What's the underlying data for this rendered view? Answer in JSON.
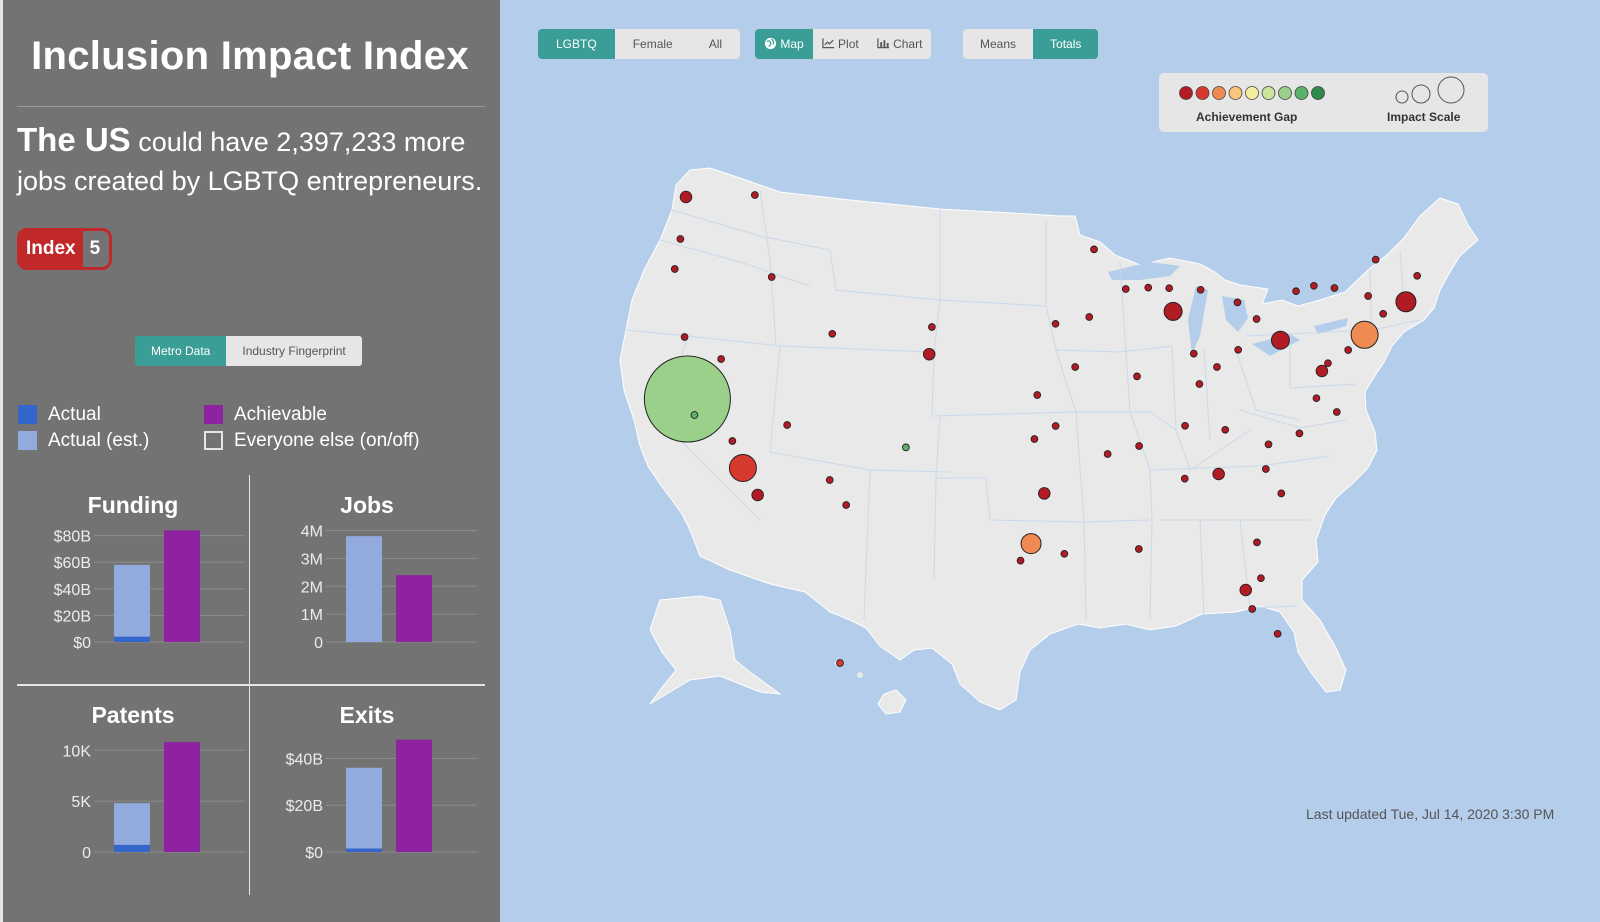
{
  "app_title": "Inclusion Impact Index",
  "headline": {
    "country": "The US",
    "text_1": "could have 2,397,233 more",
    "text_2": "jobs created by LGBTQ entrepreneurs."
  },
  "index_badge": {
    "label": "Index",
    "value": "5"
  },
  "data_toggle": {
    "options": [
      "Metro Data",
      "Industry Fingerprint"
    ],
    "selected": "Metro Data"
  },
  "legend": {
    "actual": "Actual",
    "actual_est": "Actual (est.)",
    "achievable": "Achievable",
    "everyone_else": "Everyone else (on/off)"
  },
  "colors": {
    "accent": "#3a9e96",
    "actual": "#3566cc",
    "actual_est": "#92aadd",
    "achievable": "#8e22a0",
    "index_red": "#c0282a",
    "land": "#e9e9e9",
    "water": "#b3cdea",
    "gap_scale": [
      "#b31b24",
      "#d63a2f",
      "#ef8a52",
      "#f8c57c",
      "#f2ee9e",
      "#cbe39a",
      "#9bd08a",
      "#5ab26a",
      "#2d8a4a"
    ]
  },
  "charts": [
    {
      "title": "Funding",
      "ticks": [
        "$80B",
        "$60B",
        "$40B",
        "$20B",
        "$0"
      ],
      "tick_values": [
        80,
        60,
        40,
        20,
        0
      ],
      "max": 88,
      "actual": 4,
      "actual_est": 58,
      "achievable": 84
    },
    {
      "title": "Jobs",
      "ticks": [
        "4M",
        "3M",
        "2M",
        "1M",
        "0"
      ],
      "tick_values": [
        4,
        3,
        2,
        1,
        0
      ],
      "max": 4.2,
      "actual": 0,
      "actual_est": 3.8,
      "achievable": 2.4
    },
    {
      "title": "Patents",
      "ticks": [
        "10K",
        "5K",
        "0"
      ],
      "tick_values": [
        10,
        5,
        0
      ],
      "max": 11.5,
      "actual": 0.7,
      "actual_est": 4.8,
      "achievable": 10.8
    },
    {
      "title": "Exits",
      "ticks": [
        "$40B",
        "$20B",
        "$0"
      ],
      "tick_values": [
        40,
        20,
        0
      ],
      "max": 50,
      "actual": 1.5,
      "actual_est": 36,
      "achievable": 48
    }
  ],
  "group_toggle": {
    "options": [
      "LGBTQ",
      "Female",
      "All"
    ],
    "selected": "LGBTQ"
  },
  "view_toggle": {
    "map": "Map",
    "plot": "Plot",
    "chart": "Chart",
    "selected": "Map"
  },
  "measure_toggle": {
    "options": [
      "Means",
      "Totals"
    ],
    "selected": "Totals"
  },
  "map_legend": {
    "gap_label": "Achievement Gap",
    "scale_label": "Impact Scale"
  },
  "last_updated": "Last updated Tue, Jul 14, 2020 3:30 PM",
  "metros": [
    {
      "lat": 47.6,
      "lon": -122.3,
      "gap": 1,
      "size": "s2"
    },
    {
      "lat": 47.7,
      "lon": -117.4,
      "gap": 1,
      "size": "s1"
    },
    {
      "lat": 45.5,
      "lon": -122.7,
      "gap": 1,
      "size": "s1"
    },
    {
      "lat": 44.0,
      "lon": -123.1,
      "gap": 1,
      "size": "s1"
    },
    {
      "lat": 43.6,
      "lon": -116.2,
      "gap": 1,
      "size": "s1"
    },
    {
      "lat": 40.6,
      "lon": -122.4,
      "gap": 1,
      "size": "s1"
    },
    {
      "lat": 38.6,
      "lon": -121.5,
      "gap": 1,
      "size": "s1"
    },
    {
      "lat": 37.5,
      "lon": -122.2,
      "gap": 7,
      "size": "xl"
    },
    {
      "lat": 36.7,
      "lon": -121.7,
      "gap": 8,
      "size": "s1"
    },
    {
      "lat": 35.4,
      "lon": -119.0,
      "gap": 1,
      "size": "s1"
    },
    {
      "lat": 34.05,
      "lon": -118.25,
      "gap": 2,
      "size": "l"
    },
    {
      "lat": 32.7,
      "lon": -117.2,
      "gap": 1,
      "size": "s2"
    },
    {
      "lat": 39.5,
      "lon": -119.8,
      "gap": 1,
      "size": "s1"
    },
    {
      "lat": 36.2,
      "lon": -115.1,
      "gap": 1,
      "size": "s1"
    },
    {
      "lat": 33.45,
      "lon": -112.07,
      "gap": 1,
      "size": "s1"
    },
    {
      "lat": 32.2,
      "lon": -110.9,
      "gap": 1,
      "size": "s1"
    },
    {
      "lat": 40.76,
      "lon": -111.89,
      "gap": 1,
      "size": "s1"
    },
    {
      "lat": 41.1,
      "lon": -104.8,
      "gap": 1,
      "size": "s1"
    },
    {
      "lat": 39.74,
      "lon": -104.99,
      "gap": 1,
      "size": "s2"
    },
    {
      "lat": 35.08,
      "lon": -106.65,
      "gap": 8,
      "size": "s1"
    },
    {
      "lat": 44.98,
      "lon": -93.26,
      "gap": 1,
      "size": "s1"
    },
    {
      "lat": 43.0,
      "lon": -91.0,
      "gap": 1,
      "size": "s1"
    },
    {
      "lat": 41.6,
      "lon": -93.6,
      "gap": 1,
      "size": "s1"
    },
    {
      "lat": 41.26,
      "lon": -96.0,
      "gap": 1,
      "size": "s1"
    },
    {
      "lat": 39.1,
      "lon": -94.6,
      "gap": 1,
      "size": "s1"
    },
    {
      "lat": 37.7,
      "lon": -97.3,
      "gap": 1,
      "size": "s1"
    },
    {
      "lat": 35.5,
      "lon": -97.5,
      "gap": 1,
      "size": "s1"
    },
    {
      "lat": 36.15,
      "lon": -95.99,
      "gap": 1,
      "size": "s1"
    },
    {
      "lat": 32.78,
      "lon": -96.8,
      "gap": 1,
      "size": "s2"
    },
    {
      "lat": 30.27,
      "lon": -97.74,
      "gap": 3,
      "size": "m"
    },
    {
      "lat": 29.42,
      "lon": -98.49,
      "gap": 1,
      "size": "s1"
    },
    {
      "lat": 29.76,
      "lon": -95.37,
      "gap": 1,
      "size": "s1"
    },
    {
      "lat": 38.63,
      "lon": -90.2,
      "gap": 1,
      "size": "s1"
    },
    {
      "lat": 41.88,
      "lon": -87.63,
      "gap": 1,
      "size": "m2"
    },
    {
      "lat": 43.04,
      "lon": -87.91,
      "gap": 1,
      "size": "s1"
    },
    {
      "lat": 43.07,
      "lon": -89.4,
      "gap": 1,
      "size": "s1"
    },
    {
      "lat": 42.96,
      "lon": -85.67,
      "gap": 1,
      "size": "s1"
    },
    {
      "lat": 42.33,
      "lon": -83.05,
      "gap": 1,
      "size": "s1"
    },
    {
      "lat": 39.77,
      "lon": -86.16,
      "gap": 1,
      "size": "s1"
    },
    {
      "lat": 39.96,
      "lon": -83.0,
      "gap": 1,
      "size": "s1"
    },
    {
      "lat": 41.5,
      "lon": -81.69,
      "gap": 1,
      "size": "s1"
    },
    {
      "lat": 40.44,
      "lon": -79.99,
      "gap": 1,
      "size": "m2"
    },
    {
      "lat": 39.1,
      "lon": -84.51,
      "gap": 1,
      "size": "s1"
    },
    {
      "lat": 38.25,
      "lon": -85.76,
      "gap": 1,
      "size": "s1"
    },
    {
      "lat": 36.16,
      "lon": -86.78,
      "gap": 1,
      "size": "s1"
    },
    {
      "lat": 35.15,
      "lon": -90.05,
      "gap": 1,
      "size": "s1"
    },
    {
      "lat": 34.75,
      "lon": -92.29,
      "gap": 1,
      "size": "s1"
    },
    {
      "lat": 33.52,
      "lon": -86.8,
      "gap": 1,
      "size": "s1"
    },
    {
      "lat": 33.75,
      "lon": -84.39,
      "gap": 1,
      "size": "s2"
    },
    {
      "lat": 30.0,
      "lon": -90.07,
      "gap": 1,
      "size": "s1"
    },
    {
      "lat": 35.96,
      "lon": -83.92,
      "gap": 1,
      "size": "s1"
    },
    {
      "lat": 35.23,
      "lon": -80.84,
      "gap": 1,
      "size": "s1"
    },
    {
      "lat": 35.78,
      "lon": -78.64,
      "gap": 1,
      "size": "s1"
    },
    {
      "lat": 34.0,
      "lon": -81.03,
      "gap": 1,
      "size": "s1"
    },
    {
      "lat": 32.78,
      "lon": -79.93,
      "gap": 1,
      "size": "s1"
    },
    {
      "lat": 37.54,
      "lon": -77.43,
      "gap": 1,
      "size": "s1"
    },
    {
      "lat": 36.85,
      "lon": -75.98,
      "gap": 1,
      "size": "s1"
    },
    {
      "lat": 38.9,
      "lon": -77.04,
      "gap": 1,
      "size": "s2"
    },
    {
      "lat": 39.29,
      "lon": -76.61,
      "gap": 1,
      "size": "s1"
    },
    {
      "lat": 39.95,
      "lon": -75.17,
      "gap": 1,
      "size": "s1"
    },
    {
      "lat": 40.71,
      "lon": -74.0,
      "gap": 3,
      "size": "l"
    },
    {
      "lat": 41.76,
      "lon": -72.68,
      "gap": 1,
      "size": "s1"
    },
    {
      "lat": 42.36,
      "lon": -71.06,
      "gap": 1,
      "size": "m"
    },
    {
      "lat": 42.65,
      "lon": -73.75,
      "gap": 1,
      "size": "s1"
    },
    {
      "lat": 43.16,
      "lon": -77.61,
      "gap": 1,
      "size": "s1"
    },
    {
      "lat": 42.89,
      "lon": -78.88,
      "gap": 1,
      "size": "s1"
    },
    {
      "lat": 43.05,
      "lon": -76.15,
      "gap": 1,
      "size": "s1"
    },
    {
      "lat": 44.47,
      "lon": -73.21,
      "gap": 1,
      "size": "s1"
    },
    {
      "lat": 43.66,
      "lon": -70.26,
      "gap": 1,
      "size": "s1"
    },
    {
      "lat": 30.33,
      "lon": -81.66,
      "gap": 1,
      "size": "s1"
    },
    {
      "lat": 28.54,
      "lon": -81.38,
      "gap": 1,
      "size": "s1"
    },
    {
      "lat": 27.95,
      "lon": -82.46,
      "gap": 1,
      "size": "s2"
    },
    {
      "lat": 27.0,
      "lon": -82.0,
      "gap": 1,
      "size": "s1"
    },
    {
      "lat": 25.76,
      "lon": -80.19,
      "gap": 1,
      "size": "s1"
    }
  ],
  "honolulu": {
    "gap": 2,
    "size": "s1"
  }
}
